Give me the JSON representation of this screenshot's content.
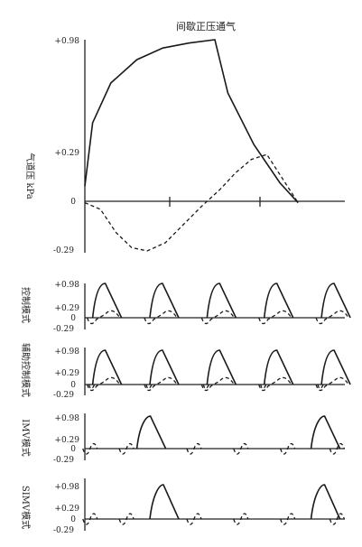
{
  "chart_data": [
    {
      "type": "line",
      "title": "间歇正压通气",
      "ylabel": "气道压 kPa",
      "ytick_labels": [
        "+0.98",
        "+0.29",
        "0",
        "-0.29"
      ],
      "yticks": [
        0.98,
        0.29,
        0,
        -0.29
      ],
      "ylim": [
        -0.29,
        0.98
      ],
      "xlim": [
        0,
        1
      ],
      "series": [
        {
          "style": "solid",
          "x": [
            0.0,
            0.03,
            0.1,
            0.2,
            0.3,
            0.4,
            0.5,
            0.55,
            0.65,
            0.75,
            0.82
          ],
          "y": [
            0.1,
            0.48,
            0.72,
            0.86,
            0.93,
            0.96,
            0.98,
            0.66,
            0.35,
            0.12,
            0.0
          ]
        },
        {
          "style": "dashed",
          "x": [
            0.0,
            0.06,
            0.12,
            0.18,
            0.24,
            0.31,
            0.38,
            0.45,
            0.52,
            0.58,
            0.64,
            0.7,
            0.82
          ],
          "y": [
            0.0,
            -0.04,
            -0.18,
            -0.27,
            -0.29,
            -0.24,
            -0.13,
            -0.02,
            0.08,
            0.18,
            0.26,
            0.29,
            0.0
          ]
        }
      ]
    },
    {
      "type": "line",
      "ylabel": "控制模式",
      "ytick_labels": [
        "+0.98",
        "+0.29",
        "0",
        "-0.29"
      ],
      "cycles": [
        {
          "start": 0.03,
          "assisted": false
        },
        {
          "start": 0.25,
          "assisted": false
        },
        {
          "start": 0.47,
          "assisted": false
        },
        {
          "start": 0.69,
          "assisted": false
        },
        {
          "start": 0.91,
          "assisted": false
        }
      ]
    },
    {
      "type": "line",
      "ylabel": "辅助控制模式",
      "ytick_labels": [
        "+0.98",
        "+0.29",
        "0",
        "-0.29"
      ],
      "cycles": [
        {
          "start": 0.03,
          "assisted": true
        },
        {
          "start": 0.25,
          "assisted": true
        },
        {
          "start": 0.47,
          "assisted": true
        },
        {
          "start": 0.69,
          "assisted": true
        },
        {
          "start": 0.91,
          "assisted": true
        }
      ]
    },
    {
      "type": "line",
      "ylabel": "IMV模式",
      "ytick_labels": [
        "+0.98",
        "+0.29",
        "0",
        "-0.29"
      ],
      "breaths": [
        0.02,
        0.16,
        0.42,
        0.6,
        0.78,
        0.97
      ],
      "mandatory_starts": [
        0.2,
        0.87
      ]
    },
    {
      "type": "line",
      "ylabel": "SIMV模式",
      "ytick_labels": [
        "+0.98",
        "+0.29",
        "0",
        "-0.29"
      ],
      "breaths": [
        0.02,
        0.16,
        0.42,
        0.6,
        0.78,
        0.97
      ],
      "mandatory_starts": [
        0.25,
        0.87
      ]
    }
  ]
}
